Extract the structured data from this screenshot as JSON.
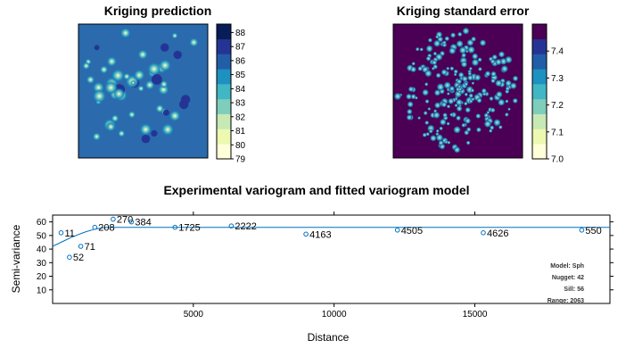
{
  "colors": {
    "pred_ramp": [
      "#ffffd9",
      "#edf8b1",
      "#c7e9b4",
      "#7fcdbb",
      "#41b6c4",
      "#1d91c0",
      "#225ea8",
      "#253494",
      "#081d58"
    ],
    "se_ramp": [
      "#ffffd9",
      "#edf8b1",
      "#c7e9b4",
      "#7fcdbb",
      "#41b6c4",
      "#1d91c0",
      "#225ea8",
      "#253494",
      "#4b0055"
    ],
    "variogram_line": "#0072bd",
    "variogram_points": "#0072bd"
  },
  "chart_data": [
    {
      "type": "heatmap",
      "title": "Kriging prediction",
      "colorbar_ticks": [
        "79",
        "80",
        "81",
        "82",
        "83",
        "84",
        "85",
        "86",
        "87",
        "88"
      ],
      "colorbar_range": [
        79,
        88.6
      ],
      "background_value": 85.2
    },
    {
      "type": "heatmap",
      "title": "Kriging standard error",
      "colorbar_ticks": [
        "7.0",
        "7.1",
        "7.2",
        "7.3",
        "7.4"
      ],
      "colorbar_range": [
        7.0,
        7.5
      ],
      "background_value": 7.49
    },
    {
      "type": "scatter",
      "title": "Experimental variogram and fitted variogram model",
      "xlabel": "Distance",
      "ylabel": "Semi-variance",
      "xlim": [
        0,
        19800
      ],
      "ylim": [
        0,
        65
      ],
      "xticks": [
        "5000",
        "10000",
        "15000"
      ],
      "yticks": [
        "10",
        "20",
        "30",
        "40",
        "50",
        "60"
      ],
      "points": [
        {
          "x": 300,
          "y": 52,
          "label": "11"
        },
        {
          "x": 600,
          "y": 34,
          "label": "52"
        },
        {
          "x": 1000,
          "y": 42,
          "label": "71"
        },
        {
          "x": 1500,
          "y": 56,
          "label": "208"
        },
        {
          "x": 2150,
          "y": 62,
          "label": "270"
        },
        {
          "x": 2800,
          "y": 60,
          "label": "384"
        },
        {
          "x": 4350,
          "y": 56,
          "label": "1725"
        },
        {
          "x": 6350,
          "y": 57,
          "label": "2222"
        },
        {
          "x": 9000,
          "y": 51,
          "label": "4163"
        },
        {
          "x": 12250,
          "y": 54,
          "label": "4505"
        },
        {
          "x": 15300,
          "y": 52,
          "label": "4626"
        },
        {
          "x": 18800,
          "y": 54,
          "label": "550"
        }
      ],
      "model": {
        "type": "Sph",
        "nugget": 42,
        "sill": 56,
        "range": 2063,
        "info_lines": [
          "Model: Sph",
          "Nugget: 42",
          "Sill: 56",
          "Range: 2063"
        ]
      }
    }
  ]
}
